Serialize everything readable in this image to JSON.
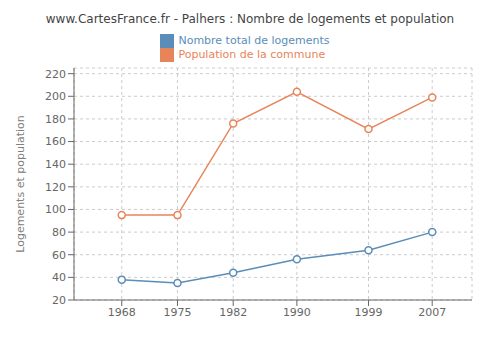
{
  "chart_data": {
    "type": "line",
    "title": "www.CartesFrance.fr - Palhers : Nombre de logements et population",
    "y_label": "Logements et population",
    "x": [
      1968,
      1975,
      1982,
      1990,
      1999,
      2007
    ],
    "series": [
      {
        "name": "Nombre total de logements",
        "color": "#5b8db8",
        "marker": "circle",
        "values": [
          38,
          35,
          44,
          56,
          64,
          80
        ]
      },
      {
        "name": "Population de la commune",
        "color": "#e8845a",
        "marker": "circle",
        "values": [
          95,
          95,
          176,
          204,
          171,
          199
        ]
      }
    ],
    "xlim": [
      1962,
      2012
    ],
    "xticks": [
      1968,
      1975,
      1982,
      1990,
      1999,
      2007
    ],
    "ylim": [
      20,
      225
    ],
    "yticks": [
      20,
      40,
      60,
      80,
      100,
      120,
      140,
      160,
      180,
      200,
      220
    ],
    "grid": true,
    "legend": "top"
  }
}
